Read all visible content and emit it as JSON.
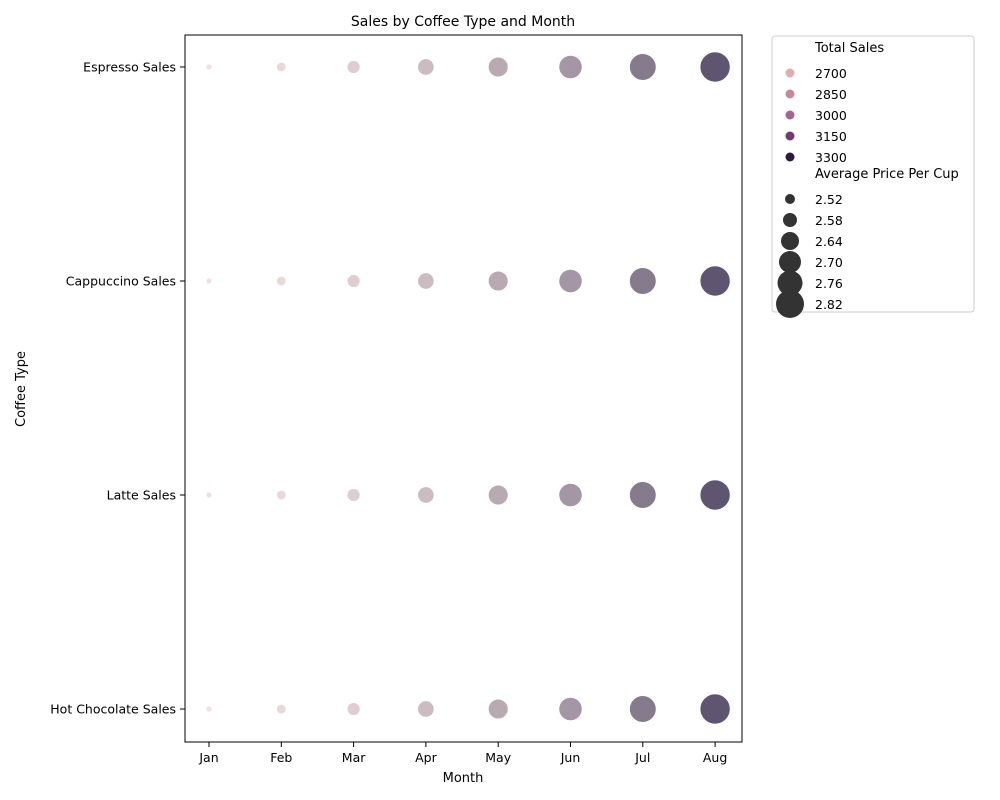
{
  "chart_data": {
    "type": "scatter",
    "title": "Sales by Coffee Type and Month",
    "xlabel": "Month",
    "ylabel": "Coffee Type",
    "categories_x": [
      "Jan",
      "Feb",
      "Mar",
      "Apr",
      "May",
      "Jun",
      "Jul",
      "Aug"
    ],
    "categories_y": [
      "Espresso Sales",
      "Cappuccino Sales",
      "Latte Sales",
      "Hot Chocolate Sales"
    ],
    "total_sales": [
      2600,
      2650,
      2700,
      2800,
      2900,
      3000,
      3150,
      3350
    ],
    "average_price_per_cup": [
      2.5,
      2.55,
      2.6,
      2.65,
      2.7,
      2.75,
      2.8,
      2.85
    ],
    "grid": false,
    "legend": {
      "position": "outside-right",
      "hue_title": "Total Sales",
      "hue_entries": [
        {
          "label": "2700",
          "color": "#e0aeb0"
        },
        {
          "label": "2850",
          "color": "#c48a9c"
        },
        {
          "label": "3000",
          "color": "#a06591"
        },
        {
          "label": "3150",
          "color": "#6f3c6d"
        },
        {
          "label": "3300",
          "color": "#2e1a3e"
        }
      ],
      "size_title": "Average Price Per Cup",
      "size_entries": [
        "2.52",
        "2.58",
        "2.64",
        "2.70",
        "2.76",
        "2.82"
      ]
    },
    "colors": {
      "low": "#eed7d4",
      "high": "#2a1c40"
    }
  }
}
